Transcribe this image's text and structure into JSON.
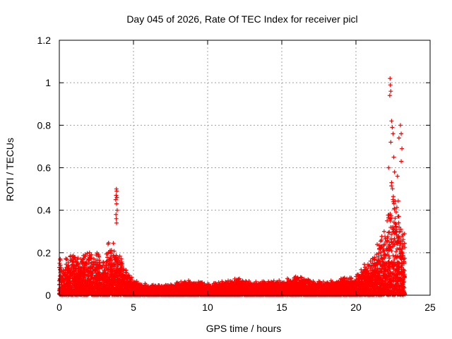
{
  "chart_data": {
    "type": "scatter",
    "title": "Day 045 of 2026, Rate Of TEC Index for receiver picl",
    "xlabel": "GPS time / hours",
    "ylabel": "ROTI / TECUs",
    "xlim": [
      0,
      25
    ],
    "ylim": [
      0,
      1.2
    ],
    "xticks": [
      0,
      5,
      10,
      15,
      20,
      25
    ],
    "yticks": [
      0,
      0.2,
      0.4,
      0.6,
      0.8,
      1,
      1.2
    ],
    "ytick_labels": [
      "0",
      "0.2",
      "0.4",
      "0.6",
      "0.8",
      "1",
      "1.2"
    ],
    "grid": true,
    "marker": "+",
    "color": "#ff0000",
    "envelope": [
      [
        0.0,
        0.17
      ],
      [
        0.3,
        0.15
      ],
      [
        0.6,
        0.18
      ],
      [
        1.0,
        0.2
      ],
      [
        1.3,
        0.17
      ],
      [
        1.8,
        0.22
      ],
      [
        2.2,
        0.18
      ],
      [
        2.6,
        0.2
      ],
      [
        3.0,
        0.16
      ],
      [
        3.3,
        0.25
      ],
      [
        3.7,
        0.22
      ],
      [
        4.1,
        0.18
      ],
      [
        4.5,
        0.12
      ],
      [
        5.0,
        0.07
      ],
      [
        6.0,
        0.05
      ],
      [
        7.0,
        0.045
      ],
      [
        8.0,
        0.06
      ],
      [
        9.0,
        0.07
      ],
      [
        10.0,
        0.055
      ],
      [
        11.0,
        0.06
      ],
      [
        12.0,
        0.08
      ],
      [
        13.0,
        0.06
      ],
      [
        14.0,
        0.065
      ],
      [
        15.0,
        0.07
      ],
      [
        16.0,
        0.09
      ],
      [
        17.0,
        0.07
      ],
      [
        18.0,
        0.06
      ],
      [
        19.0,
        0.08
      ],
      [
        20.0,
        0.09
      ],
      [
        20.5,
        0.13
      ],
      [
        21.0,
        0.16
      ],
      [
        21.5,
        0.25
      ],
      [
        22.0,
        0.3
      ],
      [
        22.3,
        0.45
      ],
      [
        22.5,
        0.55
      ],
      [
        22.8,
        0.45
      ],
      [
        23.0,
        0.35
      ],
      [
        23.3,
        0.28
      ]
    ],
    "outliers": [
      [
        3.85,
        0.5
      ],
      [
        3.87,
        0.49
      ],
      [
        3.83,
        0.47
      ],
      [
        3.88,
        0.46
      ],
      [
        3.8,
        0.45
      ],
      [
        3.86,
        0.43
      ],
      [
        3.9,
        0.4
      ],
      [
        3.82,
        0.38
      ],
      [
        3.84,
        0.36
      ],
      [
        3.86,
        0.34
      ],
      [
        22.3,
        1.02
      ],
      [
        22.32,
        0.99
      ],
      [
        22.35,
        0.96
      ],
      [
        22.28,
        0.94
      ],
      [
        22.4,
        0.82
      ],
      [
        22.45,
        0.79
      ],
      [
        22.5,
        0.76
      ],
      [
        22.35,
        0.72
      ],
      [
        23.0,
        0.8
      ],
      [
        23.05,
        0.76
      ],
      [
        22.9,
        0.74
      ],
      [
        23.1,
        0.69
      ],
      [
        22.55,
        0.65
      ],
      [
        23.05,
        0.63
      ],
      [
        22.2,
        0.6
      ],
      [
        22.6,
        0.58
      ],
      [
        22.8,
        0.56
      ],
      [
        22.4,
        0.53
      ],
      [
        22.1,
        0.35
      ],
      [
        21.9,
        0.3
      ]
    ]
  }
}
